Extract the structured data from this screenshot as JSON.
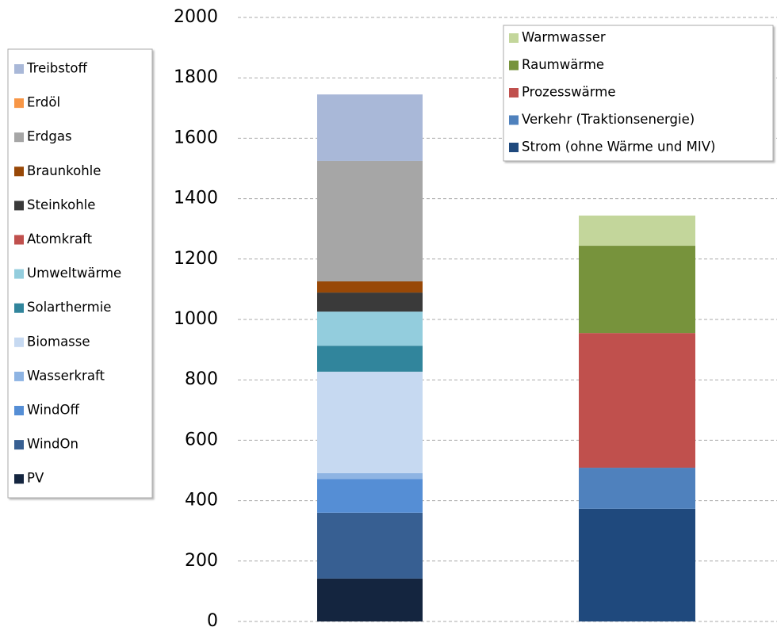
{
  "chart_data": {
    "type": "bar",
    "stacked": true,
    "categories": [
      null,
      null
    ],
    "ylim": [
      0,
      2000
    ],
    "yticks": [
      0,
      200,
      400,
      600,
      800,
      1000,
      1200,
      1400,
      1600,
      1800,
      2000
    ],
    "grid": true,
    "series": [
      {
        "name": "PV",
        "color": "#14253f",
        "values": [
          142,
          null
        ]
      },
      {
        "name": "WindOn",
        "color": "#375f92",
        "values": [
          218,
          null
        ]
      },
      {
        "name": "WindOff",
        "color": "#558ed5",
        "values": [
          112,
          null
        ]
      },
      {
        "name": "Wasserkraft",
        "color": "#8eb4e3",
        "values": [
          19,
          null
        ]
      },
      {
        "name": "Biomasse",
        "color": "#c6d9f1",
        "values": [
          336,
          null
        ]
      },
      {
        "name": "Solarthermie",
        "color": "#31859c",
        "values": [
          86,
          null
        ]
      },
      {
        "name": "Umweltwärme",
        "color": "#93cddd",
        "values": [
          113,
          null
        ]
      },
      {
        "name": "Atomkraft",
        "color": "#c0504d",
        "values": [
          0,
          null
        ]
      },
      {
        "name": "Steinkohle",
        "color": "#3a3a3a",
        "values": [
          63,
          null
        ]
      },
      {
        "name": "Braunkohle",
        "color": "#984807",
        "values": [
          37,
          null
        ]
      },
      {
        "name": "Erdgas",
        "color": "#a6a6a6",
        "values": [
          399,
          null
        ]
      },
      {
        "name": "Erdöl",
        "color": "#f79646",
        "values": [
          0,
          null
        ]
      },
      {
        "name": "Treibstoff",
        "color": "#a9b8d8",
        "values": [
          220,
          null
        ]
      },
      {
        "name": "Strom (ohne Wärme und MIV)",
        "color": "#1f497d",
        "values": [
          null,
          373
        ]
      },
      {
        "name": "Verkehr (Traktionsenergie)",
        "color": "#4f81bd",
        "values": [
          null,
          136
        ]
      },
      {
        "name": "Prozesswärme",
        "color": "#c0504d",
        "values": [
          null,
          446
        ]
      },
      {
        "name": "Raumwärme",
        "color": "#77933c",
        "values": [
          null,
          289
        ]
      },
      {
        "name": "Warmwasser",
        "color": "#c3d69b",
        "values": [
          null,
          100
        ]
      }
    ]
  }
}
